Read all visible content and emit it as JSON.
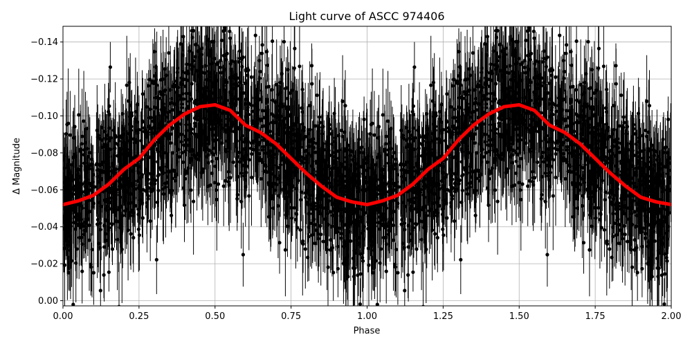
{
  "chart_data": {
    "type": "scatter",
    "title": "Light curve of ASCC 974406",
    "xlabel": "Phase",
    "ylabel": "Δ Magnitude",
    "xlim": [
      0.0,
      2.0
    ],
    "ylim": [
      0.0028,
      -0.1485
    ],
    "y_inverted": true,
    "grid": true,
    "xticks": [
      "0.00",
      "0.25",
      "0.50",
      "0.75",
      "1.00",
      "1.25",
      "1.50",
      "1.75",
      "2.00"
    ],
    "yticks": [
      "−0.14",
      "−0.12",
      "−0.10",
      "−0.08",
      "−0.06",
      "−0.04",
      "−0.02",
      "0.00"
    ],
    "ytick_values": [
      -0.14,
      -0.12,
      -0.1,
      -0.08,
      -0.06,
      -0.04,
      -0.02,
      0.0
    ],
    "points_color": "#000000",
    "binned_color": "#ff0000",
    "binned_curve": {
      "phase": [
        0.0,
        0.05,
        0.1,
        0.15,
        0.2,
        0.25,
        0.3,
        0.35,
        0.4,
        0.45,
        0.5,
        0.55,
        0.6,
        0.65,
        0.7,
        0.75,
        0.8,
        0.85,
        0.9,
        0.95,
        1.0
      ],
      "magnitude": [
        -0.052,
        -0.054,
        -0.057,
        -0.063,
        -0.071,
        -0.077,
        -0.087,
        -0.095,
        -0.101,
        -0.105,
        -0.106,
        -0.103,
        -0.095,
        -0.091,
        -0.085,
        -0.077,
        -0.069,
        -0.062,
        -0.056,
        -0.0535,
        -0.052
      ]
    },
    "scatter_sigma": 0.02
  }
}
